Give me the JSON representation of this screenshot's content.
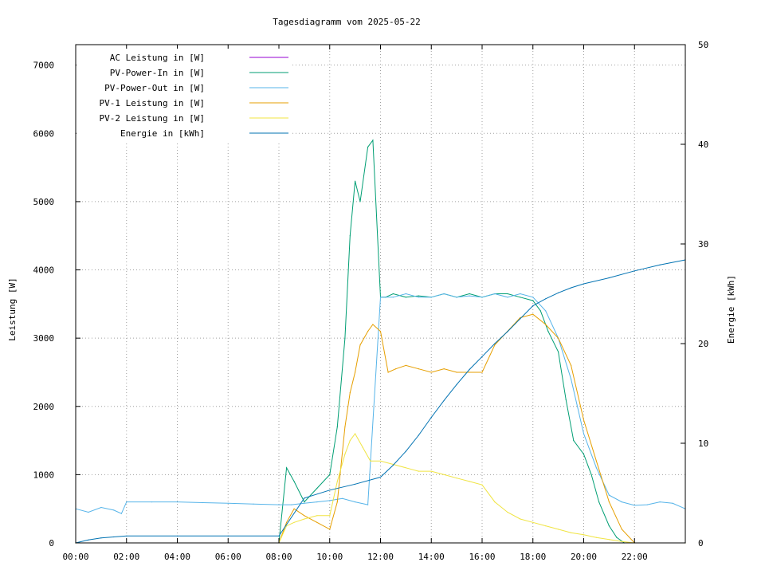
{
  "chart_data": {
    "type": "line",
    "title": "Tagesdiagramm vom 2025-05-22",
    "ylabel": "Leistung [W]",
    "y2label": "Energie [kWh]",
    "xlim": [
      0,
      24
    ],
    "ylim": [
      0,
      7300
    ],
    "y2lim": [
      0,
      50
    ],
    "grid": true,
    "legend_position": "top-left",
    "x_ticks": [
      "00:00",
      "02:00",
      "04:00",
      "06:00",
      "08:00",
      "10:00",
      "12:00",
      "14:00",
      "16:00",
      "18:00",
      "20:00",
      "22:00"
    ],
    "y_ticks": [
      0,
      1000,
      2000,
      3000,
      4000,
      5000,
      6000,
      7000
    ],
    "y2_ticks": [
      0,
      10,
      20,
      30,
      40,
      50
    ],
    "series": [
      {
        "name": "AC Leistung in [W]",
        "color": "#9400d3",
        "axis": "left",
        "x": [],
        "y": []
      },
      {
        "name": "PV-Power-In in [W]",
        "color": "#009e73",
        "axis": "left",
        "x": [
          0,
          8,
          8.3,
          8.6,
          9,
          9.5,
          10,
          10.3,
          10.6,
          10.8,
          11,
          11.2,
          11.5,
          11.7,
          12,
          12.2,
          12.5,
          13,
          13.5,
          14,
          14.5,
          15,
          15.5,
          16,
          16.5,
          17,
          17.5,
          18,
          18.3,
          18.6,
          19,
          19.3,
          19.6,
          20,
          20.3,
          20.6,
          21,
          21.3,
          21.6,
          22,
          24
        ],
        "y": [
          0,
          0,
          1100,
          900,
          600,
          800,
          1000,
          1700,
          3000,
          4500,
          5300,
          5000,
          5800,
          5900,
          3600,
          3600,
          3650,
          3600,
          3620,
          3600,
          3650,
          3600,
          3650,
          3600,
          3650,
          3650,
          3600,
          3550,
          3400,
          3100,
          2800,
          2100,
          1500,
          1300,
          1000,
          600,
          250,
          80,
          0,
          0,
          0
        ]
      },
      {
        "name": "PV-Power-Out in [W]",
        "color": "#56b4e9",
        "axis": "left",
        "x": [
          0,
          0.5,
          1,
          1.5,
          1.8,
          2,
          3,
          4,
          5,
          6,
          7,
          8,
          8.5,
          9,
          9.5,
          10,
          10.5,
          11,
          11.5,
          12,
          12.5,
          13,
          13.5,
          14,
          14.5,
          15,
          15.5,
          16,
          16.5,
          17,
          17.5,
          18,
          18.5,
          19,
          19.5,
          20,
          20.5,
          21,
          21.5,
          22,
          22.5,
          23,
          23.5,
          24
        ],
        "y": [
          500,
          450,
          520,
          480,
          430,
          600,
          600,
          600,
          590,
          580,
          570,
          560,
          560,
          580,
          600,
          620,
          650,
          600,
          560,
          3600,
          3600,
          3650,
          3600,
          3600,
          3650,
          3600,
          3620,
          3600,
          3650,
          3600,
          3650,
          3600,
          3400,
          3000,
          2400,
          1600,
          1100,
          700,
          600,
          550,
          560,
          600,
          580,
          500
        ]
      },
      {
        "name": "PV-1 Leistung in [W]",
        "color": "#e69f00",
        "axis": "left",
        "x": [
          0,
          8,
          8.3,
          8.6,
          9,
          9.5,
          10,
          10.3,
          10.6,
          10.8,
          11,
          11.2,
          11.5,
          11.7,
          12,
          12.3,
          12.6,
          13,
          13.5,
          14,
          14.5,
          15,
          15.5,
          16,
          16.5,
          17,
          17.5,
          18,
          18.5,
          19,
          19.5,
          20,
          20.5,
          21,
          21.5,
          22,
          24
        ],
        "y": [
          0,
          0,
          300,
          500,
          400,
          300,
          200,
          600,
          1700,
          2200,
          2500,
          2900,
          3100,
          3200,
          3100,
          2500,
          2550,
          2600,
          2550,
          2500,
          2550,
          2500,
          2500,
          2500,
          2900,
          3100,
          3300,
          3350,
          3200,
          3000,
          2600,
          1800,
          1200,
          600,
          200,
          0,
          0
        ]
      },
      {
        "name": "PV-2 Leistung in [W]",
        "color": "#f0e442",
        "axis": "left",
        "x": [
          0,
          8,
          8.3,
          8.6,
          9,
          9.5,
          10,
          10.3,
          10.6,
          10.8,
          11,
          11.3,
          11.6,
          12,
          12.5,
          13,
          13.5,
          14,
          14.5,
          15,
          15.5,
          16,
          16.5,
          17,
          17.5,
          18,
          18.5,
          19,
          19.5,
          20,
          20.5,
          21,
          21.5,
          22,
          24
        ],
        "y": [
          0,
          0,
          250,
          300,
          350,
          400,
          400,
          900,
          1300,
          1500,
          1600,
          1400,
          1200,
          1200,
          1150,
          1100,
          1050,
          1050,
          1000,
          950,
          900,
          850,
          600,
          450,
          350,
          300,
          250,
          200,
          150,
          120,
          80,
          50,
          20,
          0,
          0
        ]
      },
      {
        "name": "Energie in [kWh]",
        "color": "#0072b2",
        "axis": "right",
        "x": [
          0,
          0.5,
          1,
          1.5,
          2,
          4,
          6,
          8,
          9,
          10,
          11,
          12,
          12.5,
          13,
          13.5,
          14,
          14.5,
          15,
          15.5,
          16,
          16.5,
          17,
          17.5,
          18,
          18.5,
          19,
          19.5,
          20,
          21,
          22,
          23,
          24
        ],
        "y": [
          0,
          0.3,
          0.5,
          0.6,
          0.7,
          0.7,
          0.7,
          0.7,
          4.5,
          5.3,
          5.9,
          6.6,
          7.8,
          9.2,
          10.8,
          12.6,
          14.3,
          15.9,
          17.4,
          18.7,
          20,
          21.2,
          22.5,
          23.8,
          24.5,
          25.1,
          25.6,
          26,
          26.6,
          27.3,
          27.9,
          28.4
        ]
      }
    ]
  }
}
